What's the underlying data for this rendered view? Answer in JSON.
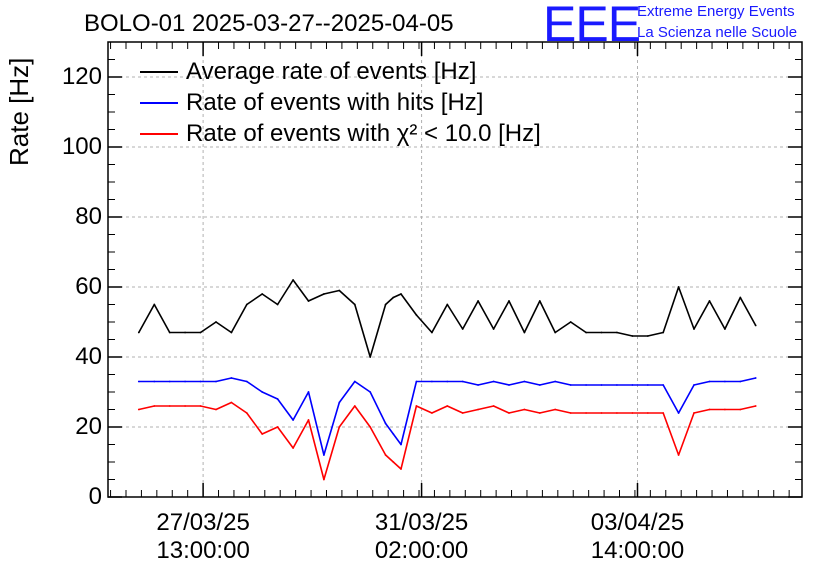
{
  "header": {
    "title": "BOLO-01 2025-03-27--2025-04-05",
    "logo_text": "EEE",
    "logo_line1": "Extreme Energy Events",
    "logo_line2": "La Scienza nelle Scuole"
  },
  "colors": {
    "logo": "#1a1aff",
    "average": "#000000",
    "hits": "#0000ff",
    "chi2": "#ff0000",
    "grid": "#b0b0b0"
  },
  "chart_data": {
    "type": "line",
    "title": "BOLO-01 2025-03-27--2025-04-05",
    "xlabel": "",
    "ylabel": "Rate [Hz]",
    "ylim": [
      0,
      130
    ],
    "xlim": [
      "2025-03-26T00:00:00",
      "2025-04-06T06:00:00"
    ],
    "grid": true,
    "legend_position": "top-left",
    "yticks": [
      0,
      20,
      40,
      60,
      80,
      100,
      120
    ],
    "xticks": [
      {
        "x": "2025-03-27T13:00:00",
        "label_date": "27/03/25",
        "label_time": "13:00:00"
      },
      {
        "x": "2025-03-31T02:00:00",
        "label_date": "31/03/25",
        "label_time": "02:00:00"
      },
      {
        "x": "2025-04-03T14:00:00",
        "label_date": "03/04/25",
        "label_time": "14:00:00"
      }
    ],
    "series": [
      {
        "name": "Average rate of events [Hz]",
        "color": "#000000",
        "x": [
          "2025-03-26T12:00:00",
          "2025-03-26T18:00:00",
          "2025-03-27T00:00:00",
          "2025-03-27T06:00:00",
          "2025-03-27T12:00:00",
          "2025-03-27T18:00:00",
          "2025-03-28T00:00:00",
          "2025-03-28T06:00:00",
          "2025-03-28T12:00:00",
          "2025-03-28T18:00:00",
          "2025-03-29T00:00:00",
          "2025-03-29T06:00:00",
          "2025-03-29T12:00:00",
          "2025-03-29T18:00:00",
          "2025-03-30T00:00:00",
          "2025-03-30T06:00:00",
          "2025-03-30T12:00:00",
          "2025-03-30T15:00:00",
          "2025-03-30T18:00:00",
          "2025-03-31T00:00:00",
          "2025-03-31T06:00:00",
          "2025-03-31T12:00:00",
          "2025-03-31T18:00:00",
          "2025-04-01T00:00:00",
          "2025-04-01T06:00:00",
          "2025-04-01T12:00:00",
          "2025-04-01T18:00:00",
          "2025-04-02T00:00:00",
          "2025-04-02T06:00:00",
          "2025-04-02T12:00:00",
          "2025-04-02T18:00:00",
          "2025-04-03T00:00:00",
          "2025-04-03T06:00:00",
          "2025-04-03T12:00:00",
          "2025-04-03T18:00:00",
          "2025-04-04T00:00:00",
          "2025-04-04T06:00:00",
          "2025-04-04T12:00:00",
          "2025-04-04T18:00:00",
          "2025-04-05T00:00:00",
          "2025-04-05T06:00:00",
          "2025-04-05T12:00:00"
        ],
        "y": [
          47,
          55,
          47,
          47,
          47,
          50,
          47,
          55,
          58,
          55,
          62,
          56,
          58,
          59,
          55,
          40,
          55,
          57,
          58,
          52,
          47,
          55,
          48,
          56,
          48,
          56,
          47,
          56,
          47,
          50,
          47,
          47,
          47,
          46,
          46,
          47,
          60,
          48,
          56,
          48,
          57,
          49
        ]
      },
      {
        "name": "Rate of events with hits [Hz]",
        "color": "#0000ff",
        "x": [
          "2025-03-26T12:00:00",
          "2025-03-26T18:00:00",
          "2025-03-27T00:00:00",
          "2025-03-27T06:00:00",
          "2025-03-27T12:00:00",
          "2025-03-27T18:00:00",
          "2025-03-28T00:00:00",
          "2025-03-28T06:00:00",
          "2025-03-28T12:00:00",
          "2025-03-28T18:00:00",
          "2025-03-29T00:00:00",
          "2025-03-29T06:00:00",
          "2025-03-29T12:00:00",
          "2025-03-29T18:00:00",
          "2025-03-30T00:00:00",
          "2025-03-30T06:00:00",
          "2025-03-30T12:00:00",
          "2025-03-30T15:00:00",
          "2025-03-30T18:00:00",
          "2025-03-31T00:00:00",
          "2025-03-31T06:00:00",
          "2025-03-31T12:00:00",
          "2025-03-31T18:00:00",
          "2025-04-01T00:00:00",
          "2025-04-01T06:00:00",
          "2025-04-01T12:00:00",
          "2025-04-01T18:00:00",
          "2025-04-02T00:00:00",
          "2025-04-02T06:00:00",
          "2025-04-02T12:00:00",
          "2025-04-02T18:00:00",
          "2025-04-03T00:00:00",
          "2025-04-03T06:00:00",
          "2025-04-03T12:00:00",
          "2025-04-03T18:00:00",
          "2025-04-04T00:00:00",
          "2025-04-04T06:00:00",
          "2025-04-04T12:00:00",
          "2025-04-04T18:00:00",
          "2025-04-05T00:00:00",
          "2025-04-05T06:00:00",
          "2025-04-05T12:00:00"
        ],
        "y": [
          33,
          33,
          33,
          33,
          33,
          33,
          34,
          33,
          30,
          28,
          22,
          30,
          12,
          27,
          33,
          30,
          21,
          18,
          15,
          33,
          33,
          33,
          33,
          32,
          33,
          32,
          33,
          32,
          33,
          32,
          32,
          32,
          32,
          32,
          32,
          32,
          24,
          32,
          33,
          33,
          33,
          34
        ]
      },
      {
        "name": "Rate of events with χ² < 10.0 [Hz]",
        "color": "#ff0000",
        "x": [
          "2025-03-26T12:00:00",
          "2025-03-26T18:00:00",
          "2025-03-27T00:00:00",
          "2025-03-27T06:00:00",
          "2025-03-27T12:00:00",
          "2025-03-27T18:00:00",
          "2025-03-28T00:00:00",
          "2025-03-28T06:00:00",
          "2025-03-28T12:00:00",
          "2025-03-28T18:00:00",
          "2025-03-29T00:00:00",
          "2025-03-29T06:00:00",
          "2025-03-29T12:00:00",
          "2025-03-29T18:00:00",
          "2025-03-30T00:00:00",
          "2025-03-30T06:00:00",
          "2025-03-30T12:00:00",
          "2025-03-30T15:00:00",
          "2025-03-30T18:00:00",
          "2025-03-31T00:00:00",
          "2025-03-31T06:00:00",
          "2025-03-31T12:00:00",
          "2025-03-31T18:00:00",
          "2025-04-01T00:00:00",
          "2025-04-01T06:00:00",
          "2025-04-01T12:00:00",
          "2025-04-01T18:00:00",
          "2025-04-02T00:00:00",
          "2025-04-02T06:00:00",
          "2025-04-02T12:00:00",
          "2025-04-02T18:00:00",
          "2025-04-03T00:00:00",
          "2025-04-03T06:00:00",
          "2025-04-03T12:00:00",
          "2025-04-03T18:00:00",
          "2025-04-04T00:00:00",
          "2025-04-04T06:00:00",
          "2025-04-04T12:00:00",
          "2025-04-04T18:00:00",
          "2025-04-05T00:00:00",
          "2025-04-05T06:00:00",
          "2025-04-05T12:00:00"
        ],
        "y": [
          25,
          26,
          26,
          26,
          26,
          25,
          27,
          24,
          18,
          20,
          14,
          22,
          5,
          20,
          26,
          20,
          12,
          10,
          8,
          26,
          24,
          26,
          24,
          25,
          26,
          24,
          25,
          24,
          25,
          24,
          24,
          24,
          24,
          24,
          24,
          24,
          12,
          24,
          25,
          25,
          25,
          26
        ]
      }
    ]
  }
}
